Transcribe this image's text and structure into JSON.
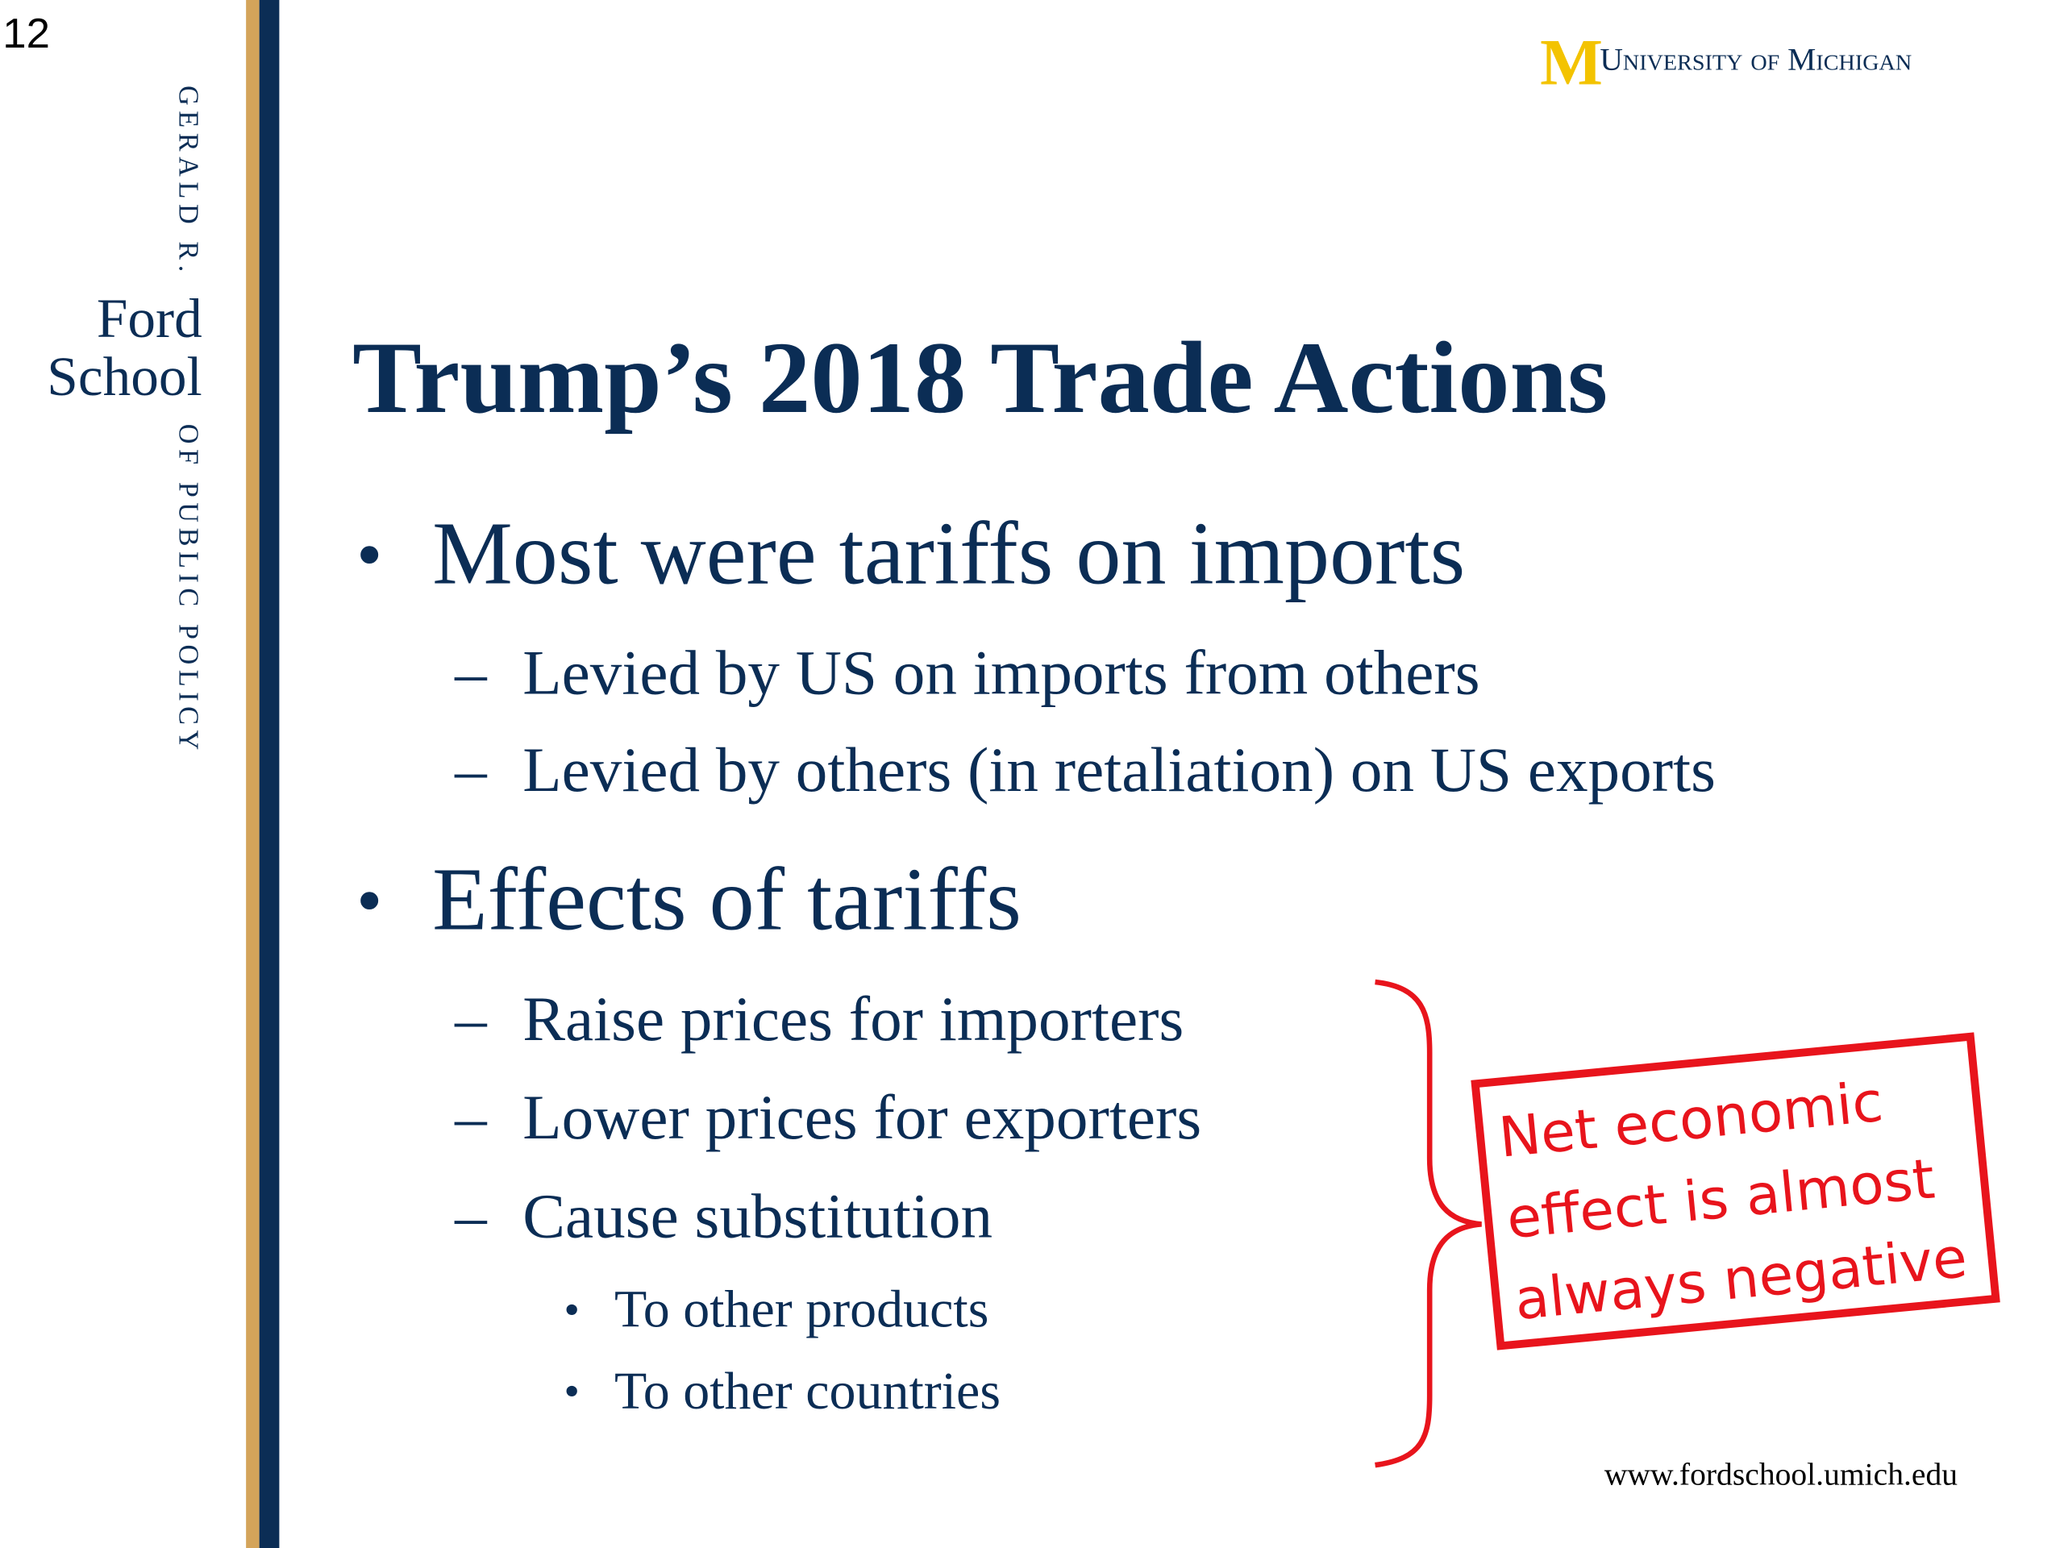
{
  "page_number": "12",
  "sidebar": {
    "top": "GERALD R.",
    "ford": "Ford",
    "school": "School",
    "bottom": "OF PUBLIC POLICY"
  },
  "header": {
    "logo": "M",
    "university": "University of Michigan"
  },
  "title": "Trump’s 2018 Trade Actions",
  "bullets": [
    {
      "text": "Most were tariffs on imports",
      "sub": [
        {
          "text": "Levied by US on imports from others"
        },
        {
          "text": "Levied by others (in retaliation) on US exports"
        }
      ]
    },
    {
      "text": "Effects of tariffs",
      "sub": [
        {
          "text": "Raise prices for importers"
        },
        {
          "text": "Lower prices for exporters"
        },
        {
          "text": "Cause substitution",
          "sub": [
            "To other products",
            "To other countries"
          ]
        }
      ]
    }
  ],
  "callout": {
    "lines": [
      "Net economic",
      "effect is almost",
      "always negative"
    ]
  },
  "footer": {
    "url": "www.fordschool.umich.edu"
  }
}
